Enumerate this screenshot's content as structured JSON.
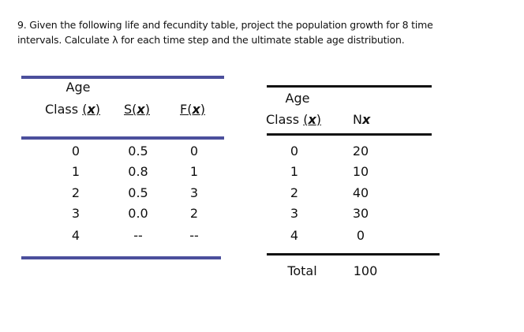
{
  "question": {
    "line1": "9.  Given the following life and fecundity table, project the population growth for 8 time",
    "line2": "intervals.  Calculate λ for each time step and the ultimate stable age distribution."
  },
  "life_table": {
    "header_top": "Age",
    "columns": [
      "Class (x)",
      "S(x)",
      "F(x)"
    ],
    "rows": [
      [
        "0",
        "0.5",
        "0"
      ],
      [
        "1",
        "0.8",
        "1"
      ],
      [
        "2",
        "0.5",
        "3"
      ],
      [
        "3",
        "0.0",
        "2"
      ],
      [
        "4",
        "--",
        "--"
      ]
    ],
    "rule_color": "#4b4f9c"
  },
  "population_table": {
    "header_top": "Age",
    "columns": [
      "Class (x)",
      "Nx"
    ],
    "rows": [
      [
        "0",
        "20"
      ],
      [
        "1",
        "10"
      ],
      [
        "2",
        "40"
      ],
      [
        "3",
        "30"
      ],
      [
        "4",
        "0"
      ]
    ],
    "total_label": "Total",
    "total_value": "100",
    "rule_color": "#111111"
  }
}
